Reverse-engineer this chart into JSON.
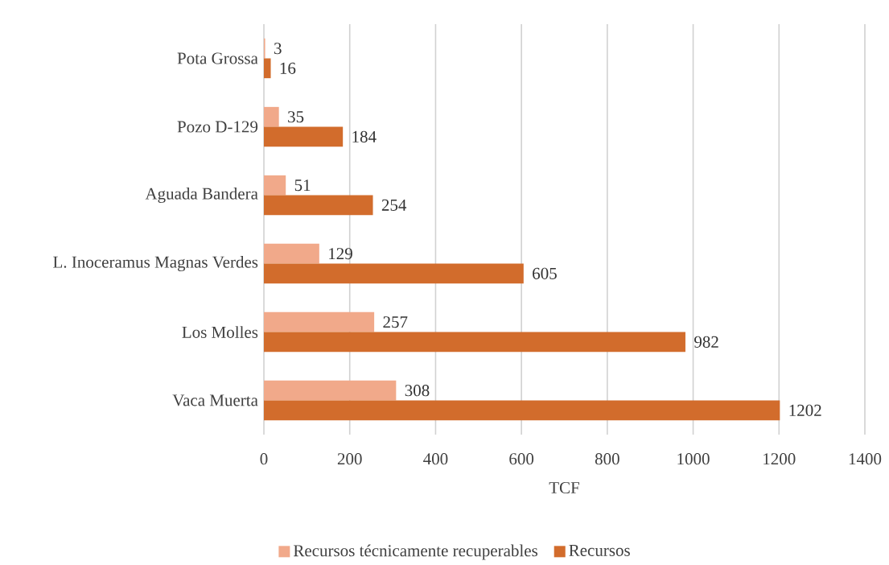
{
  "chart_data": {
    "type": "bar",
    "orientation": "horizontal",
    "categories": [
      "Pota Grossa",
      "Pozo D-129",
      "Aguada Bandera",
      "L. Inoceramus Magnas Verdes",
      "Los Molles",
      "Vaca Muerta"
    ],
    "series": [
      {
        "name": "Recursos técnicamente recuperables",
        "color": "#f1a98a",
        "values": [
          3,
          35,
          51,
          129,
          257,
          308
        ]
      },
      {
        "name": "Recursos",
        "color": "#d26c2c",
        "values": [
          16,
          184,
          254,
          605,
          982,
          1202
        ]
      }
    ],
    "xlabel": "TCF",
    "xlim": [
      0,
      1400
    ],
    "xticks": [
      0,
      200,
      400,
      600,
      800,
      1000,
      1200,
      1400
    ],
    "grid": "x",
    "legend": "bottom",
    "data_labels": true
  }
}
